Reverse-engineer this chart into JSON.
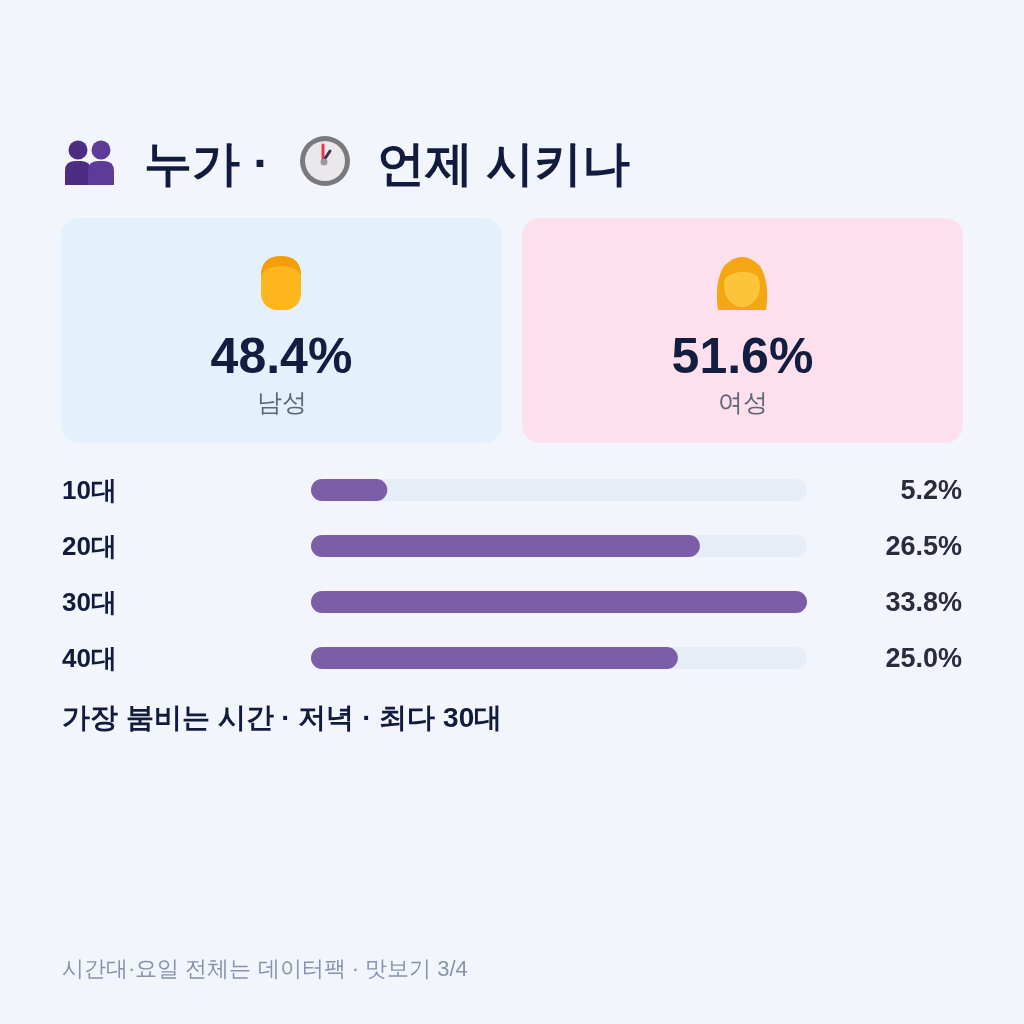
{
  "chart_data": [
    {
      "type": "other",
      "title": "누가 · 언제 시키나",
      "categories": [
        "남성",
        "여성"
      ],
      "value_labels": [
        "48.4%",
        "51.6%"
      ],
      "colors": [
        "#e3f1fc",
        "#fde0ec"
      ]
    },
    {
      "type": "bar",
      "orientation": "horizontal",
      "categories": [
        "10대",
        "20대",
        "30대",
        "40대"
      ],
      "values": [
        5.2,
        26.5,
        33.8,
        25.0
      ],
      "value_labels": [
        "5.2%",
        "26.5%",
        "33.8%",
        "25.0%"
      ],
      "color": "#7b5ea7",
      "xlim": [
        0,
        33.8
      ],
      "tick_labels": "y",
      "annotations": [
        "가장 붐비는 시간 · 저녁 · 최다 30대",
        "시간대·요일 전체는 데이터팩 · 맛보기 3/4"
      ]
    }
  ]
}
